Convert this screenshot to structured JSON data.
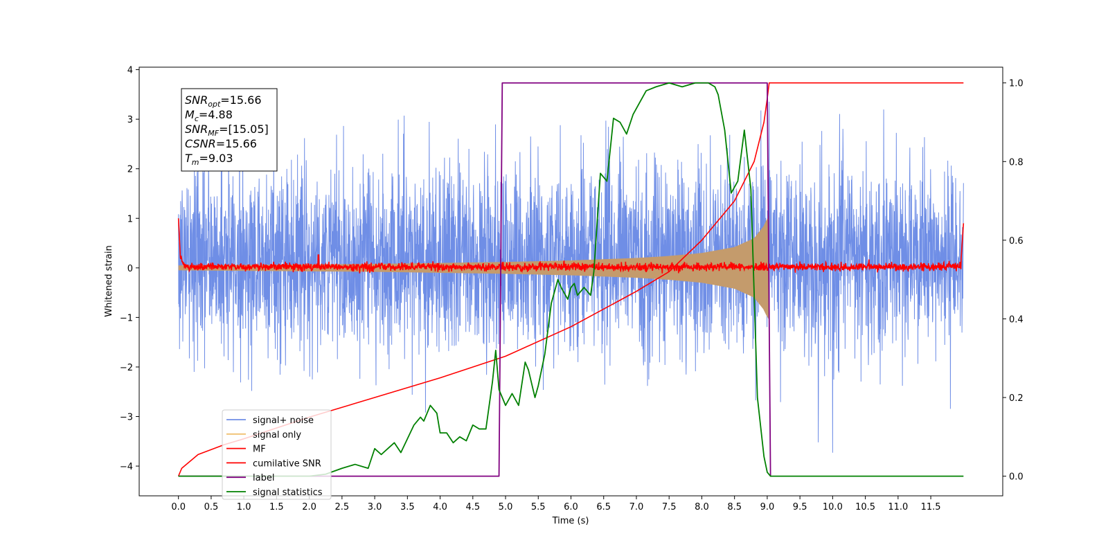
{
  "chart_data": {
    "type": "line",
    "title": "",
    "xlabel": "Time (s)",
    "ylabel": "Whitened strain",
    "ylabel_right": "",
    "xlim": [
      -0.6,
      12.6
    ],
    "ylim": [
      -4.6,
      4.05
    ],
    "ylim_right": [
      -0.05,
      1.04
    ],
    "xticks": [
      0.0,
      0.5,
      1.0,
      1.5,
      2.0,
      2.5,
      3.0,
      3.5,
      4.0,
      4.5,
      5.0,
      5.5,
      6.0,
      6.5,
      7.0,
      7.5,
      8.0,
      8.5,
      9.0,
      9.5,
      10.0,
      10.5,
      11.0,
      11.5
    ],
    "xtick_labels": [
      "0.0",
      "0.5",
      "1.0",
      "1.5",
      "2.0",
      "2.5",
      "3.0",
      "3.5",
      "4.0",
      "4.5",
      "5.0",
      "5.5",
      "6.0",
      "6.5",
      "7.0",
      "7.5",
      "8.0",
      "8.5",
      "9.0",
      "9.5",
      "10.0",
      "10.5",
      "11.0",
      "11.5"
    ],
    "yticks": [
      -4,
      -3,
      -2,
      -1,
      0,
      1,
      2,
      3,
      4
    ],
    "ytick_labels": [
      "−4",
      "−3",
      "−2",
      "−1",
      "0",
      "1",
      "2",
      "3",
      "4"
    ],
    "yticks_right": [
      0.0,
      0.2,
      0.4,
      0.6,
      0.8,
      1.0
    ],
    "ytick_labels_right": [
      "0.0",
      "0.2",
      "0.4",
      "0.6",
      "0.8",
      "1.0"
    ],
    "grid": false,
    "legend_position": "lower-left",
    "annotation": {
      "lines": [
        {
          "sym": "SNR",
          "sub": "opt",
          "value": "=15.66"
        },
        {
          "sym": "M",
          "sub": "c",
          "value": "=4.88"
        },
        {
          "sym": "SNR",
          "sub": "MF",
          "value": "=[15.05]"
        },
        {
          "sym": "CSNR",
          "sub": "",
          "value": "=15.66"
        },
        {
          "sym": "T",
          "sub": "m",
          "value": "=9.03"
        }
      ]
    },
    "series": [
      {
        "name": "signal+ noise",
        "color": "#6f8ee6",
        "axis": "left",
        "kind": "noise",
        "x_range": [
          0.0,
          12.0
        ],
        "typical_amplitude": [
          -2.0,
          2.4
        ],
        "extremes": [
          -4.15,
          3.65
        ]
      },
      {
        "name": "signal only",
        "color": "#f0c070",
        "fill_color": "#c49b6c",
        "axis": "left",
        "kind": "chirp-envelope",
        "x": [
          0.0,
          1.0,
          2.0,
          3.0,
          4.0,
          5.0,
          6.0,
          7.0,
          7.5,
          8.0,
          8.5,
          8.8,
          8.95,
          9.0,
          9.03
        ],
        "envelope": [
          0.05,
          0.06,
          0.07,
          0.08,
          0.1,
          0.12,
          0.15,
          0.2,
          0.24,
          0.3,
          0.42,
          0.6,
          0.85,
          1.0,
          1.05
        ]
      },
      {
        "name": "MF",
        "color": "#ff0000",
        "axis": "left",
        "kind": "matched-filter",
        "x_range": [
          0.0,
          12.0
        ],
        "baseline": 0.02,
        "start_value": 1.0,
        "end_value": 0.9
      },
      {
        "name": "cumilative SNR",
        "color": "#ff0000",
        "axis": "right",
        "x": [
          0.0,
          0.05,
          0.3,
          0.7,
          1.0,
          2.0,
          3.0,
          4.0,
          5.0,
          6.0,
          7.0,
          7.5,
          8.0,
          8.5,
          8.8,
          8.95,
          9.0,
          9.03,
          12.0
        ],
        "values": [
          0.0,
          0.02,
          0.055,
          0.08,
          0.095,
          0.15,
          0.2,
          0.25,
          0.305,
          0.38,
          0.47,
          0.52,
          0.6,
          0.7,
          0.8,
          0.9,
          0.96,
          1.0,
          1.0
        ]
      },
      {
        "name": "label",
        "color": "#800080",
        "axis": "right",
        "x": [
          0.0,
          4.9,
          4.95,
          9.0,
          9.05,
          9.06
        ],
        "values": [
          0.0,
          0.0,
          1.0,
          1.0,
          0.0,
          0.0
        ]
      },
      {
        "name": "signal statistics",
        "color": "#008000",
        "axis": "right",
        "x": [
          0.0,
          2.0,
          2.25,
          2.5,
          2.7,
          2.9,
          3.0,
          3.1,
          3.2,
          3.3,
          3.4,
          3.5,
          3.6,
          3.7,
          3.75,
          3.85,
          3.95,
          4.0,
          4.1,
          4.2,
          4.3,
          4.4,
          4.5,
          4.6,
          4.7,
          4.8,
          4.85,
          4.9,
          4.95,
          5.0,
          5.1,
          5.2,
          5.3,
          5.35,
          5.45,
          5.5,
          5.6,
          5.7,
          5.8,
          5.85,
          5.95,
          6.0,
          6.05,
          6.1,
          6.2,
          6.3,
          6.35,
          6.45,
          6.55,
          6.65,
          6.75,
          6.85,
          6.95,
          7.05,
          7.15,
          7.3,
          7.5,
          7.7,
          7.9,
          8.1,
          8.2,
          8.25,
          8.35,
          8.45,
          8.55,
          8.65,
          8.75,
          8.85,
          8.95,
          9.0,
          9.05,
          12.0
        ],
        "values": [
          0.0,
          0.0,
          0.005,
          0.02,
          0.03,
          0.02,
          0.07,
          0.055,
          0.07,
          0.085,
          0.06,
          0.095,
          0.13,
          0.15,
          0.14,
          0.18,
          0.16,
          0.11,
          0.11,
          0.085,
          0.1,
          0.09,
          0.13,
          0.12,
          0.12,
          0.24,
          0.32,
          0.22,
          0.2,
          0.18,
          0.21,
          0.18,
          0.29,
          0.27,
          0.2,
          0.23,
          0.31,
          0.44,
          0.5,
          0.48,
          0.45,
          0.48,
          0.49,
          0.46,
          0.48,
          0.46,
          0.52,
          0.77,
          0.75,
          0.91,
          0.9,
          0.87,
          0.92,
          0.95,
          0.98,
          0.99,
          1.0,
          0.99,
          1.0,
          1.0,
          0.99,
          0.97,
          0.88,
          0.72,
          0.75,
          0.88,
          0.73,
          0.2,
          0.05,
          0.01,
          0.0,
          0.0
        ]
      }
    ]
  }
}
